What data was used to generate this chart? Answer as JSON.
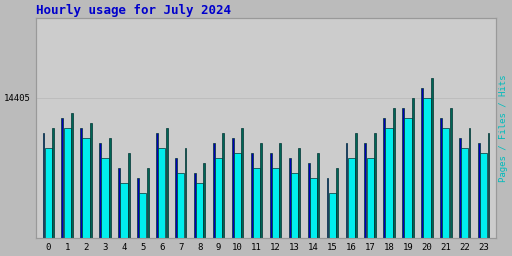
{
  "title": "Hourly usage for July 2024",
  "title_color": "#0000cc",
  "title_fontsize": 9,
  "hours": [
    0,
    1,
    2,
    3,
    4,
    5,
    6,
    7,
    8,
    9,
    10,
    11,
    12,
    13,
    14,
    15,
    16,
    17,
    18,
    19,
    20,
    21,
    22,
    23
  ],
  "hits_values": [
    14050,
    14200,
    14100,
    13950,
    13700,
    13600,
    14050,
    13800,
    13650,
    13950,
    14000,
    13850,
    13850,
    13800,
    13750,
    13600,
    13950,
    13950,
    14200,
    14300,
    14500,
    14200,
    14000,
    13950
  ],
  "pages_values": [
    13900,
    14100,
    14000,
    13800,
    13550,
    13450,
    13900,
    13650,
    13550,
    13800,
    13850,
    13700,
    13700,
    13650,
    13600,
    13450,
    13800,
    13800,
    14100,
    14200,
    14400,
    14100,
    13900,
    13850
  ],
  "files_values": [
    14100,
    14250,
    14150,
    14000,
    13850,
    13700,
    14100,
    13900,
    13750,
    14050,
    14100,
    13950,
    13950,
    13900,
    13850,
    13700,
    14050,
    14050,
    14300,
    14400,
    14600,
    14300,
    14100,
    14050
  ],
  "cyan_color": "#00eeee",
  "teal_color": "#006655",
  "blue_color": "#0000bb",
  "bar_edge_color": "#003333",
  "background_color": "#bbbbbb",
  "plot_bg_color": "#cccccc",
  "ylabel": "14405",
  "ylabel_color": "#000000",
  "right_ylabel": "Pages / Files / Hits",
  "right_ylabel_color": "#00bbbb",
  "ylim_min": 13000,
  "ylim_max": 15200,
  "ytick_val": 14405,
  "grid_color": "#bbbbbb"
}
